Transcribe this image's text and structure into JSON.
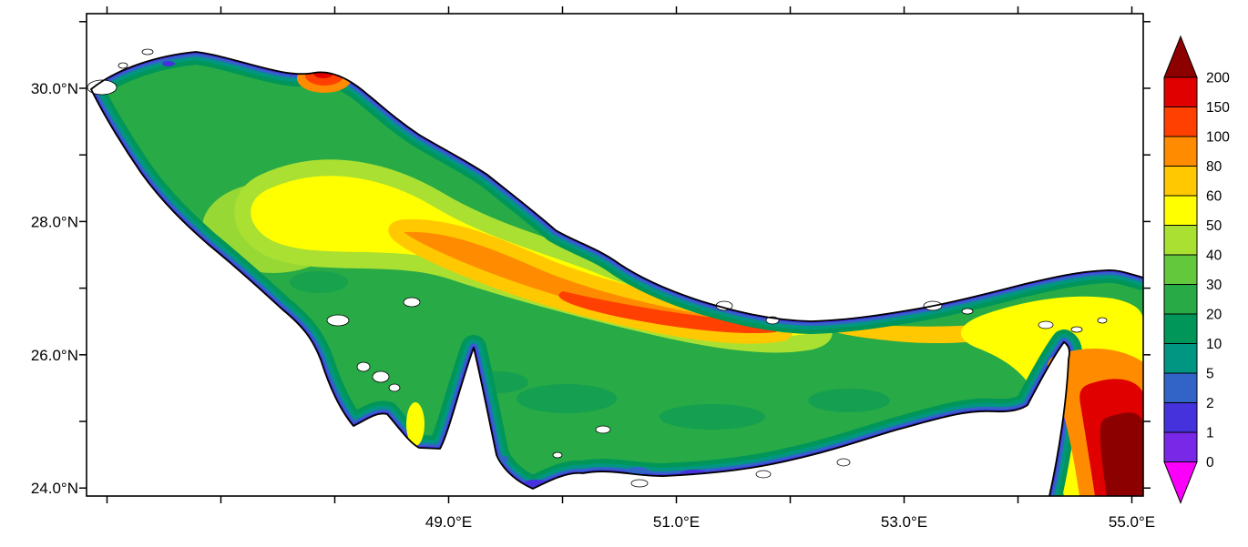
{
  "chart_data": {
    "type": "heatmap",
    "title": "",
    "plot": {
      "background": "#FFFFFF",
      "frame_color": "#000000",
      "land_color": "#FFFFFF",
      "coastline_color": "#000000",
      "grid": false,
      "legend_position": "right-colorbar"
    },
    "x_axis": {
      "tick_labels": [
        "49.0°E",
        "51.0°E",
        "53.0°E",
        "55.0°E"
      ],
      "labeled_lons": [
        49,
        51,
        53,
        55
      ],
      "minor_tick_lons": [
        46,
        47,
        48,
        49,
        50,
        51,
        52,
        53,
        54,
        55
      ],
      "lon_range": [
        45.82,
        55.1
      ]
    },
    "y_axis": {
      "tick_labels": [
        "30.0°N",
        "28.0°N",
        "26.0°N",
        "24.0°N"
      ],
      "labeled_lats": [
        30,
        28,
        26,
        24
      ],
      "minor_tick_lats": [
        24,
        25,
        26,
        27,
        28,
        29,
        30,
        31
      ],
      "lat_range": [
        23.88,
        31.12
      ]
    },
    "colorbar": {
      "tick_labels": [
        "200",
        "150",
        "100",
        "80",
        "60",
        "50",
        "40",
        "30",
        "20",
        "10",
        "5",
        "2",
        "1",
        "0"
      ],
      "segment_order": [
        "above-200",
        "150-200",
        "100-150",
        "80-100",
        "60-80",
        "50-60",
        "40-50",
        "30-40",
        "20-30",
        "10-20",
        "5-10",
        "2-5",
        "1-2",
        "0-1",
        "below-0"
      ]
    },
    "palette": {
      "above-200": "#8C0000",
      "150-200": "#E00000",
      "100-150": "#FF4000",
      "80-100": "#FF8C00",
      "60-80": "#FFC800",
      "50-60": "#FFFF00",
      "40-50": "#AAE032",
      "30-40": "#64C83C",
      "20-30": "#28AA46",
      "10-20": "#00965A",
      "5-10": "#009682",
      "2-5": "#3264C8",
      "1-2": "#4632DC",
      "0-1": "#7828E6",
      "below-0": "#FA00FA",
      "land": "#FFFFFF",
      "coastline": "#000000"
    },
    "field_summary": {
      "low_value_zones": "narrow blue-violet fringe along all coasts, bays west of Qatar peninsula, scattered coastal speckles",
      "mid_value_zones": "broad green interior of the gulf",
      "high_value_zones": "yellow-orange-red band along the central axis toward the southeast, red maximum spot on the upper north coast, dark red maximum in the basin at the far southeast corner"
    }
  }
}
